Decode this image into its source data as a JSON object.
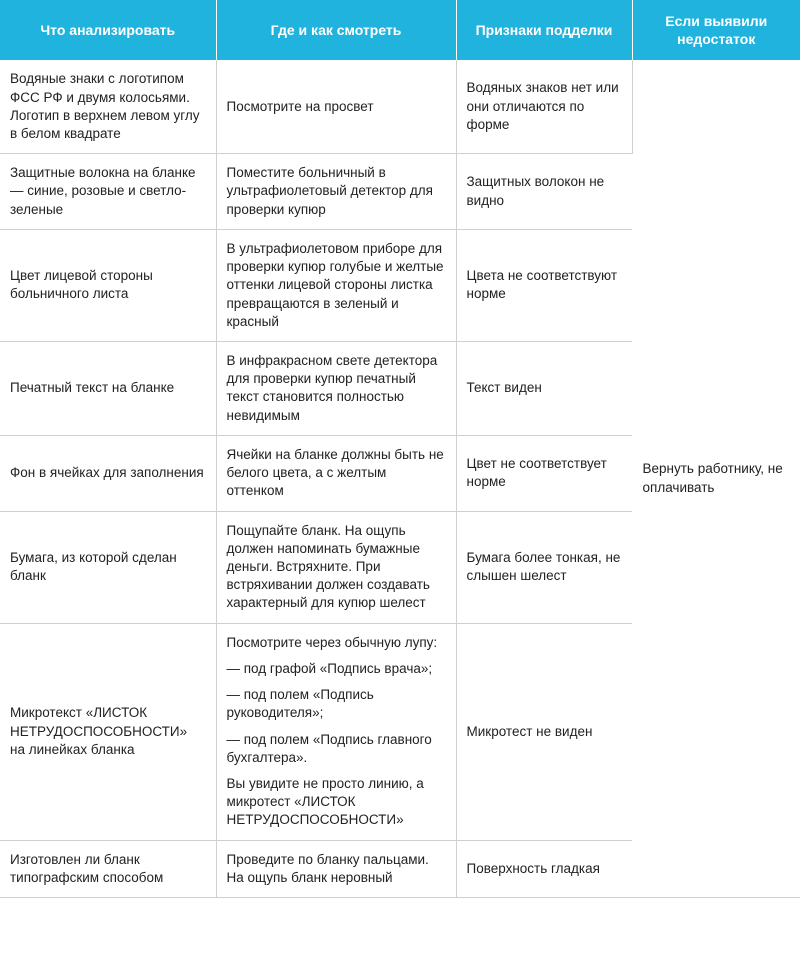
{
  "headers": {
    "col1": "Что анализировать",
    "col2": "Где и как смотреть",
    "col3": "Признаки подделки",
    "col4": "Если выявили недостаток"
  },
  "mergedAction": "Вернуть работнику, не оплачивать",
  "rows": [
    {
      "analyze": "Водяные знаки с логотипом ФСС РФ и двумя колосьями. Логотип в верхнем левом углу в белом квадрате",
      "how": "Посмотрите на просвет",
      "signs": "Водяных знаков нет или они отличаются по форме"
    },
    {
      "analyze": "Защитные волокна на бланке — синие, розовые и светло-зеленые",
      "how": "Поместите больничный в ультрафиолетовый детектор для проверки купюр",
      "signs": "Защитных волокон не видно"
    },
    {
      "analyze": "Цвет лицевой стороны больничного листа",
      "how": "В ультрафиолетовом приборе для проверки купюр голубые и желтые оттенки лицевой стороны листка превращаются в зеленый и красный",
      "signs": "Цвета не соответствуют норме"
    },
    {
      "analyze": "Печатный текст на бланке",
      "how": "В инфракрасном свете детектора для проверки купюр печатный текст становится полностью невидимым",
      "signs": "Текст виден"
    },
    {
      "analyze": "Фон в ячейках для заполнения",
      "how": "Ячейки на бланке должны быть не белого цвета, а с желтым оттенком",
      "signs": "Цвет не соответствует норме"
    },
    {
      "analyze": "Бумага, из которой сделан бланк",
      "how": "Пощупайте бланк. На ощупь должен напоминать бумажные деньги. Встряхните. При встряхивании должен создавать характерный для купюр шелест",
      "signs": "Бумага более тонкая, не слышен шелест"
    },
    {
      "analyze": "Микротекст «ЛИСТОК НЕТРУДОСПОСОБНОСТИ» на линейках бланка",
      "how_multi": [
        "Посмотрите через обычную лупу:",
        "— под графой «Подпись врача»;",
        "— под полем «Подпись руководителя»;",
        "— под полем «Подпись главного бухгалтера».",
        "Вы увидите не просто линию, а микротест «ЛИСТОК НЕТРУДОСПОСОБНОСТИ»"
      ],
      "signs": "Микротест не виден"
    },
    {
      "analyze": "Изготовлен ли бланк типографским способом",
      "how": "Проведите по бланку пальцами. На ощупь бланк неровный",
      "signs": "Поверхность гладкая"
    }
  ],
  "style": {
    "header_bg": "#1fb3dd",
    "header_text": "#ffffff",
    "body_text": "#222222",
    "border_color": "#d0d0d0",
    "font_size_header": 14,
    "font_size_body": 13.5
  }
}
